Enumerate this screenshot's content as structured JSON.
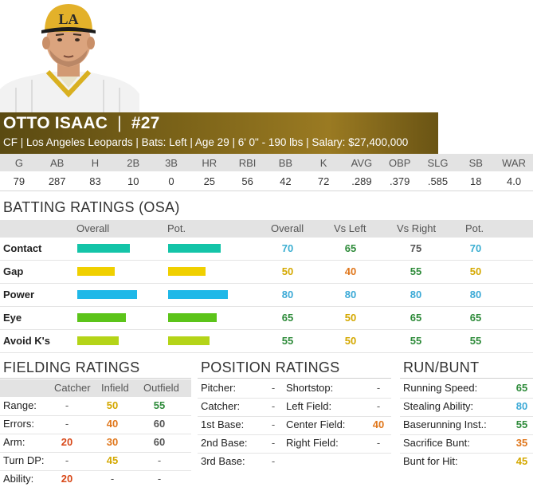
{
  "player": {
    "name": "OTTO ISAAC",
    "number_sep": "|",
    "number": "#27",
    "info": "CF | Los Angeles Leopards | Bats: Left | Age 29 | 6' 0\" - 190 lbs | Salary: $27,400,000",
    "cap_logo": "LA"
  },
  "stats": {
    "headers": [
      "G",
      "AB",
      "H",
      "2B",
      "3B",
      "HR",
      "RBI",
      "BB",
      "K",
      "AVG",
      "OBP",
      "SLG",
      "SB",
      "WAR"
    ],
    "values": [
      "79",
      "287",
      "83",
      "10",
      "0",
      "25",
      "56",
      "42",
      "72",
      ".289",
      ".379",
      ".585",
      "18",
      "4.0"
    ]
  },
  "batting": {
    "title": "BATTING RATINGS (OSA)",
    "columns": {
      "overall_bar": "Overall",
      "pot_bar": "Pot.",
      "overall": "Overall",
      "vs_left": "Vs Left",
      "vs_right": "Vs Right",
      "pot": "Pot."
    },
    "rows": [
      {
        "label": "Contact",
        "overall": "70",
        "vs_left": "65",
        "vs_right": "75",
        "pot": "70"
      },
      {
        "label": "Gap",
        "overall": "50",
        "vs_left": "40",
        "vs_right": "55",
        "pot": "50"
      },
      {
        "label": "Power",
        "overall": "80",
        "vs_left": "80",
        "vs_right": "80",
        "pot": "80"
      },
      {
        "label": "Eye",
        "overall": "65",
        "vs_left": "50",
        "vs_right": "65",
        "pot": "65"
      },
      {
        "label": "Avoid K's",
        "overall": "55",
        "vs_left": "50",
        "vs_right": "55",
        "pot": "55"
      }
    ]
  },
  "fielding": {
    "title": "FIELDING RATINGS",
    "headers": [
      "Catcher",
      "Infield",
      "Outfield"
    ],
    "rows": [
      {
        "label": "Range:",
        "catcher": "-",
        "infield": "50",
        "outfield": "55"
      },
      {
        "label": "Errors:",
        "catcher": "-",
        "infield": "40",
        "outfield": "60"
      },
      {
        "label": "Arm:",
        "catcher": "20",
        "infield": "30",
        "outfield": "60"
      },
      {
        "label": "Turn DP:",
        "catcher": "-",
        "infield": "45",
        "outfield": "-"
      },
      {
        "label": "Ability:",
        "catcher": "20",
        "infield": "-",
        "outfield": "-"
      }
    ]
  },
  "position": {
    "title": "POSITION RATINGS",
    "left": [
      {
        "label": "Pitcher:",
        "value": "-"
      },
      {
        "label": "Catcher:",
        "value": "-"
      },
      {
        "label": "1st Base:",
        "value": "-"
      },
      {
        "label": "2nd Base:",
        "value": "-"
      },
      {
        "label": "3rd Base:",
        "value": "-"
      }
    ],
    "right": [
      {
        "label": "Shortstop:",
        "value": "-"
      },
      {
        "label": "Left Field:",
        "value": "-"
      },
      {
        "label": "Center Field:",
        "value": "40"
      },
      {
        "label": "Right Field:",
        "value": "-"
      }
    ]
  },
  "runbunt": {
    "title": "RUN/BUNT",
    "rows": [
      {
        "label": "Running Speed:",
        "value": "65"
      },
      {
        "label": "Stealing Ability:",
        "value": "80"
      },
      {
        "label": "Baserunning Inst.:",
        "value": "55"
      },
      {
        "label": "Sacrifice Bunt:",
        "value": "35"
      },
      {
        "label": "Bunt for Hit:",
        "value": "45"
      }
    ]
  },
  "colors": {
    "r80": "#1fb8e8",
    "r70": "#14c4a8",
    "r65": "#5cc41a",
    "r55": "#b4d418",
    "r50": "#f0d000",
    "r45": "#f0c000",
    "r40": "#f08c00",
    "r35": "#ee8a10",
    "r30": "#ee7010",
    "r20": "#e04a18",
    "t80": "#3ba9d6",
    "t70": "#3aaed1",
    "t65": "#2e8b3a",
    "t55": "#2e8b3a",
    "t50": "#d4a800",
    "t45": "#d4a800",
    "t40": "#e0761a",
    "t35": "#e0761a",
    "t30": "#e0761a",
    "t20": "#d84818"
  }
}
